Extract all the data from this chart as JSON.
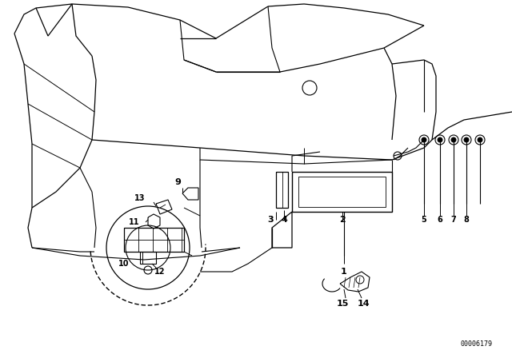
{
  "bg_color": "#ffffff",
  "line_color": "#000000",
  "fig_width": 6.4,
  "fig_height": 4.48,
  "dpi": 100,
  "diagram_id": "00006179"
}
